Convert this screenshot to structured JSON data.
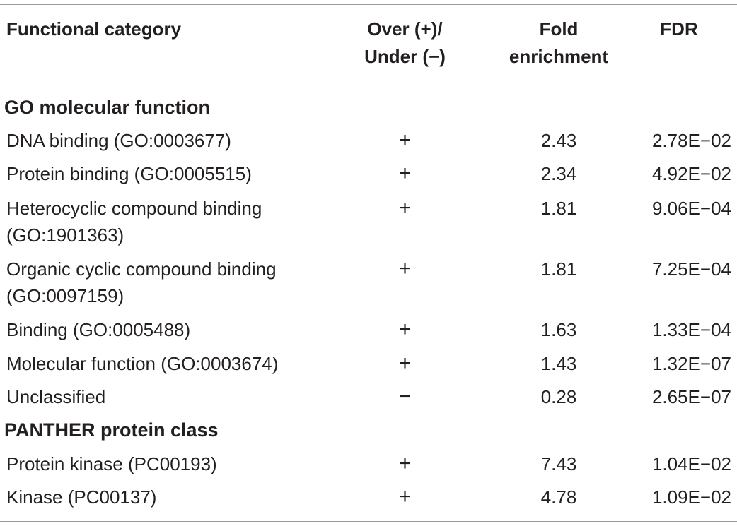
{
  "table": {
    "headers": {
      "category": "Functional category",
      "direction_line1": "Over (+)/",
      "direction_line2": "Under (−)",
      "fold_line1": "Fold",
      "fold_line2": "enrichment",
      "fdr": "FDR"
    },
    "sections": [
      {
        "title": "GO molecular function",
        "rows": [
          {
            "category": "DNA binding (GO:0003677)",
            "category_line2": "",
            "direction": "+",
            "fold": "2.43",
            "fdr": "2.78E−02"
          },
          {
            "category": "Protein binding (GO:0005515)",
            "category_line2": "",
            "direction": "+",
            "fold": "2.34",
            "fdr": "4.92E−02"
          },
          {
            "category": "Heterocyclic compound binding",
            "category_line2": "(GO:1901363)",
            "direction": "+",
            "fold": "1.81",
            "fdr": "9.06E−04"
          },
          {
            "category": "Organic cyclic compound binding",
            "category_line2": "(GO:0097159)",
            "direction": "+",
            "fold": "1.81",
            "fdr": "7.25E−04"
          },
          {
            "category": "Binding (GO:0005488)",
            "category_line2": "",
            "direction": "+",
            "fold": "1.63",
            "fdr": "1.33E−04"
          },
          {
            "category": "Molecular function (GO:0003674)",
            "category_line2": "",
            "direction": "+",
            "fold": "1.43",
            "fdr": "1.32E−07"
          },
          {
            "category": "Unclassified",
            "category_line2": "",
            "direction": "−",
            "fold": "0.28",
            "fdr": "2.65E−07"
          }
        ]
      },
      {
        "title": "PANTHER protein class",
        "rows": [
          {
            "category": "Protein kinase (PC00193)",
            "category_line2": "",
            "direction": "+",
            "fold": "7.43",
            "fdr": "1.04E−02"
          },
          {
            "category": "Kinase (PC00137)",
            "category_line2": "",
            "direction": "+",
            "fold": "4.78",
            "fdr": "1.09E−02"
          }
        ]
      }
    ]
  }
}
